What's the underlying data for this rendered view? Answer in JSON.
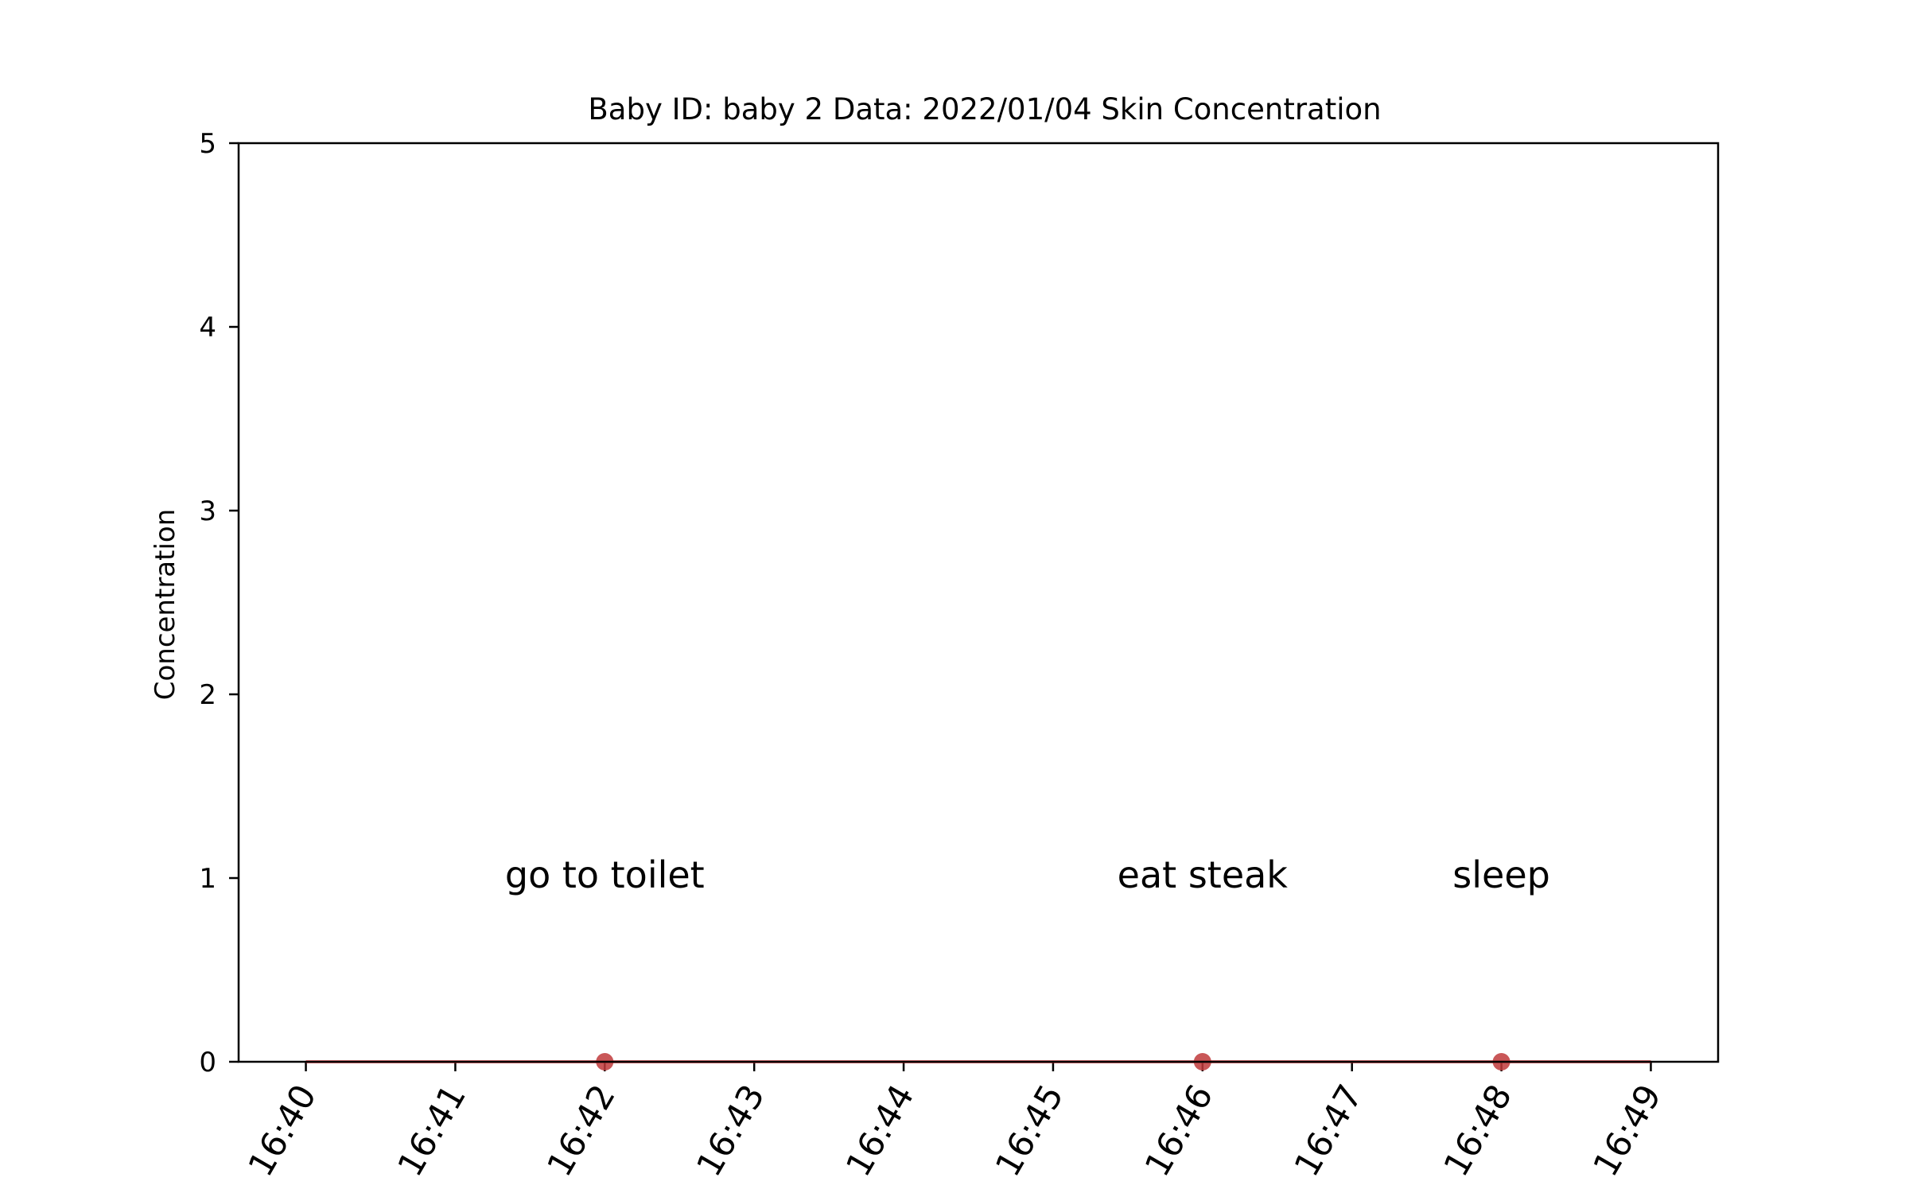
{
  "chart_data": {
    "type": "line",
    "title": "Baby ID: baby 2 Data: 2022/01/04 Skin Concentration",
    "xlabel": "",
    "ylabel": "Concentration",
    "x": [
      "16:40",
      "16:41",
      "16:42",
      "16:43",
      "16:44",
      "16:45",
      "16:46",
      "16:47",
      "16:48",
      "16:49"
    ],
    "xlim": [
      "16:39:33",
      "16:49:27"
    ],
    "ylim": [
      0,
      5
    ],
    "yticks": [
      0,
      1,
      2,
      3,
      4,
      5
    ],
    "grid": false,
    "series": [
      {
        "values": [
          0,
          0,
          0,
          0,
          0,
          0,
          0,
          0,
          0,
          0
        ],
        "color": "#d62728"
      }
    ],
    "events": [
      {
        "x": "16:42",
        "y": 0,
        "label": "go to toilet"
      },
      {
        "x": "16:46",
        "y": 0,
        "label": "eat steak"
      },
      {
        "x": "16:48",
        "y": 0,
        "label": "sleep"
      }
    ],
    "event_label_y": 1,
    "marker_color": "#c0393b"
  }
}
